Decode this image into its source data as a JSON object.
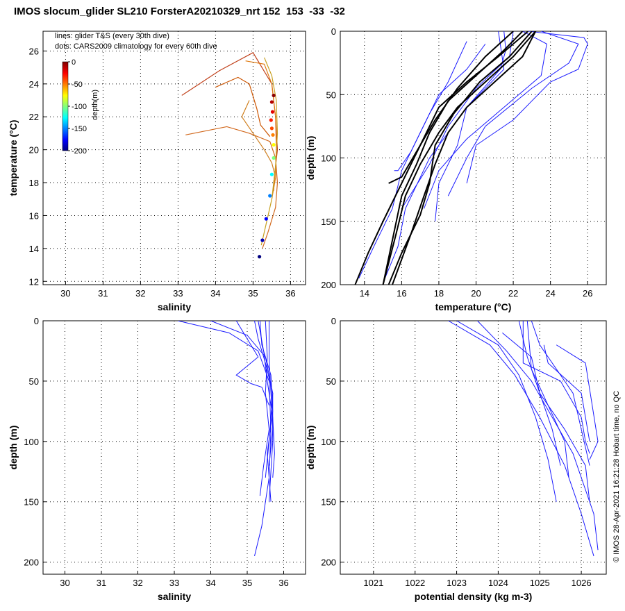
{
  "title": "IMOS slocum_glider SL210 ForsterA20210329_nrt 152  153  -33  -32",
  "stamp": "© IMOS 28-Apr-2021 16:21:28 Hobart time, no QC",
  "colors": {
    "glider_line": "#1a1aff",
    "mean_line": "#000000",
    "cmap_deep": "#00007f",
    "cmap_shallow": "#7f0000"
  },
  "chart_data": [
    {
      "id": "ts",
      "type": "scatter",
      "xlabel": "salinity",
      "ylabel": "temperature (°C)",
      "xlim": [
        29.4,
        36.4
      ],
      "ylim": [
        11.8,
        27.2
      ],
      "xticks": [
        30,
        31,
        32,
        33,
        34,
        35,
        36
      ],
      "yticks": [
        12,
        14,
        16,
        18,
        20,
        22,
        24,
        26
      ],
      "legend": [
        "lines: glider T&S (every 30th dive)",
        "dots: CARS2009 climatology for every 60th dive"
      ],
      "colorbar": {
        "label": "depth(m)",
        "ticks": [
          0,
          -50,
          -100,
          -150,
          -200
        ],
        "range": [
          -200,
          0
        ]
      },
      "series": [
        {
          "name": "glider T&S 1",
          "s": [
            33.1,
            34.1,
            35.0,
            35.5,
            35.6,
            35.65,
            35.55
          ],
          "t": [
            23.3,
            24.8,
            25.9,
            24.0,
            22.0,
            20.0,
            18.0
          ]
        },
        {
          "name": "glider T&S 2",
          "s": [
            33.2,
            34.3,
            34.9,
            35.45,
            35.6,
            35.65,
            35.6,
            35.4,
            35.25
          ],
          "t": [
            20.9,
            21.4,
            21.0,
            20.5,
            19.5,
            18.0,
            16.5,
            15.0,
            14.0
          ]
        },
        {
          "name": "glider T&S 3",
          "s": [
            34.0,
            34.6,
            34.9,
            35.1,
            35.2,
            35.45
          ],
          "t": [
            23.8,
            24.4,
            24.0,
            22.5,
            21.5,
            20.8
          ]
        },
        {
          "name": "glider T&S 4",
          "s": [
            34.8,
            35.3,
            35.5,
            35.6,
            35.62,
            35.6,
            35.5
          ],
          "t": [
            25.4,
            25.2,
            24.0,
            22.0,
            20.0,
            18.3,
            17.0
          ]
        },
        {
          "name": "glider T&S 5",
          "s": [
            34.9,
            34.7,
            35.0,
            35.3,
            35.5,
            35.58,
            35.55
          ],
          "t": [
            23.0,
            22.0,
            21.0,
            20.0,
            19.2,
            18.5,
            17.5
          ]
        },
        {
          "name": "glider T&S 6",
          "s": [
            35.3,
            35.5,
            35.62,
            35.65,
            35.6,
            35.5,
            35.35,
            35.22
          ],
          "t": [
            25.6,
            24.5,
            23.0,
            21.0,
            19.0,
            17.0,
            15.5,
            14.2
          ]
        }
      ],
      "climatology": [
        {
          "s": 35.55,
          "t": 23.3,
          "d": -2
        },
        {
          "s": 35.5,
          "t": 22.9,
          "d": -10
        },
        {
          "s": 35.52,
          "t": 22.3,
          "d": -20
        },
        {
          "s": 35.48,
          "t": 21.8,
          "d": -30
        },
        {
          "s": 35.5,
          "t": 21.3,
          "d": -40
        },
        {
          "s": 35.53,
          "t": 20.9,
          "d": -50
        },
        {
          "s": 35.55,
          "t": 20.3,
          "d": -75
        },
        {
          "s": 35.55,
          "t": 19.5,
          "d": -100
        },
        {
          "s": 35.5,
          "t": 18.5,
          "d": -125
        },
        {
          "s": 35.45,
          "t": 17.2,
          "d": -150
        },
        {
          "s": 35.35,
          "t": 15.8,
          "d": -175
        },
        {
          "s": 35.25,
          "t": 14.5,
          "d": -190
        },
        {
          "s": 35.17,
          "t": 13.5,
          "d": -200
        }
      ]
    },
    {
      "id": "temp_depth",
      "type": "line",
      "xlabel": "temperature (°C)",
      "ylabel": "depth (m)",
      "xlim": [
        12.7,
        27.0
      ],
      "ylim": [
        0,
        200
      ],
      "y_reversed": true,
      "xticks": [
        14,
        16,
        18,
        20,
        22,
        24,
        26
      ],
      "yticks": [
        0,
        50,
        100,
        150,
        200
      ],
      "series": [
        {
          "name": "glider temperature 1",
          "x": [
            21.5,
            21.6,
            21.3,
            19.5,
            17.5,
            16.2,
            15.8,
            15.1
          ],
          "depth": [
            0,
            15,
            30,
            60,
            100,
            140,
            170,
            195
          ]
        },
        {
          "name": "glider temperature 2",
          "x": [
            22.0,
            21.8,
            20.0,
            18.5,
            17.5,
            16.0
          ],
          "depth": [
            0,
            20,
            45,
            75,
            105,
            140
          ]
        },
        {
          "name": "glider temperature 3",
          "x": [
            22.8,
            25.8,
            26.0,
            25.5,
            24.0,
            22.0,
            20.0,
            19.5
          ],
          "depth": [
            0,
            5,
            10,
            30,
            40,
            70,
            90,
            120
          ]
        },
        {
          "name": "glider temperature 4",
          "x": [
            21.2,
            21.5,
            19.5,
            19.0,
            18.0,
            17.8
          ],
          "depth": [
            0,
            30,
            60,
            90,
            120,
            150
          ]
        },
        {
          "name": "glider temperature 5",
          "x": [
            20.5,
            19.5,
            18.0,
            17.0,
            16.0,
            15.5,
            14.5,
            13.7
          ],
          "depth": [
            10,
            30,
            50,
            80,
            110,
            140,
            170,
            195
          ]
        },
        {
          "name": "glider temperature 6",
          "x": [
            23.5,
            25.5,
            25.0,
            23.0,
            20.5,
            19.5,
            18.5
          ],
          "depth": [
            0,
            10,
            25,
            45,
            75,
            100,
            130
          ]
        },
        {
          "name": "glider temperature 7",
          "x": [
            19.5,
            18.5,
            17.5,
            16.5,
            15.8,
            15.6
          ],
          "depth": [
            8,
            40,
            65,
            95,
            110,
            110
          ]
        },
        {
          "name": "glider temperature 8",
          "x": [
            22.5,
            23.8,
            23.5,
            21.5,
            19.5,
            18.0,
            17.2
          ],
          "depth": [
            0,
            10,
            35,
            60,
            85,
            110,
            140
          ]
        }
      ],
      "mean_series": [
        {
          "name": "mean temperature 1",
          "x": [
            23.2,
            22.0,
            20.5,
            19.0,
            18.0,
            17.0,
            16.2,
            15.7,
            15.0
          ],
          "depth": [
            0,
            20,
            40,
            60,
            80,
            105,
            130,
            160,
            200
          ]
        },
        {
          "name": "mean temperature 2",
          "x": [
            22.5,
            21.5,
            20.0,
            18.5,
            17.5,
            16.8,
            16.0,
            15.5,
            15.0
          ],
          "depth": [
            0,
            15,
            35,
            55,
            80,
            105,
            130,
            165,
            200
          ]
        },
        {
          "name": "mean temperature 3",
          "x": [
            23.0,
            21.8,
            20.2,
            18.8,
            17.8,
            17.5,
            17.0,
            16.0,
            15.3
          ],
          "depth": [
            0,
            20,
            40,
            65,
            90,
            120,
            145,
            175,
            200
          ]
        },
        {
          "name": "mean temperature 4",
          "x": [
            22.8,
            21.2,
            19.5,
            18.0,
            17.0,
            16.0,
            15.0,
            14.2,
            13.5
          ],
          "depth": [
            0,
            20,
            40,
            60,
            90,
            120,
            150,
            175,
            200
          ]
        },
        {
          "name": "mean temperature 5",
          "x": [
            22.0,
            20.5,
            19.0,
            17.8,
            16.8,
            16.0,
            15.3
          ],
          "depth": [
            0,
            20,
            45,
            70,
            95,
            115,
            120
          ]
        },
        {
          "name": "mean temperature 6",
          "x": [
            23.2,
            22.5,
            21.0,
            19.5,
            18.5,
            17.8,
            17.2,
            16.5,
            15.5
          ],
          "depth": [
            0,
            20,
            40,
            60,
            80,
            105,
            130,
            160,
            200
          ]
        }
      ]
    },
    {
      "id": "sal_depth",
      "type": "line",
      "xlabel": "salinity",
      "ylabel": "depth (m)",
      "xlim": [
        29.4,
        36.6
      ],
      "ylim": [
        0,
        210
      ],
      "y_reversed": true,
      "xticks": [
        30,
        31,
        32,
        33,
        34,
        35,
        36
      ],
      "yticks": [
        0,
        50,
        100,
        150,
        200
      ],
      "series": [
        {
          "name": "glider salinity 1",
          "x": [
            33.1,
            34.5,
            35.3,
            35.6,
            35.65,
            35.6,
            35.4,
            35.2
          ],
          "depth": [
            0,
            10,
            25,
            50,
            90,
            130,
            170,
            195
          ]
        },
        {
          "name": "glider salinity 2",
          "x": [
            34.0,
            35.0,
            35.5,
            35.7,
            35.6,
            35.5
          ],
          "depth": [
            0,
            12,
            30,
            60,
            100,
            130
          ]
        },
        {
          "name": "glider salinity 3",
          "x": [
            34.7,
            35.3,
            34.9,
            34.7,
            35.1,
            35.4,
            35.6
          ],
          "depth": [
            0,
            30,
            40,
            45,
            52,
            55,
            70
          ]
        },
        {
          "name": "glider salinity 4",
          "x": [
            35.2,
            35.3,
            35.5,
            35.7,
            35.7,
            35.6
          ],
          "depth": [
            0,
            15,
            35,
            60,
            100,
            150
          ]
        },
        {
          "name": "glider salinity 5",
          "x": [
            35.35,
            35.4,
            35.65,
            35.7,
            35.55,
            35.65
          ],
          "depth": [
            0,
            20,
            45,
            75,
            110,
            150
          ]
        },
        {
          "name": "glider salinity 6",
          "x": [
            35.3,
            35.45,
            35.55,
            35.7,
            35.75,
            35.7
          ],
          "depth": [
            0,
            25,
            50,
            80,
            110,
            130
          ]
        },
        {
          "name": "glider salinity 7",
          "x": [
            35.5,
            35.55,
            35.5,
            35.6,
            35.45,
            35.35
          ],
          "depth": [
            0,
            30,
            60,
            90,
            120,
            145
          ]
        },
        {
          "name": "glider salinity 8",
          "x": [
            35.6,
            35.6,
            35.65,
            35.7,
            35.6
          ],
          "depth": [
            0,
            30,
            60,
            90,
            120
          ]
        }
      ]
    },
    {
      "id": "dens_depth",
      "type": "line",
      "xlabel": "potential density (kg m-3)",
      "ylabel": "depth (m)",
      "xlim": [
        1020.2,
        1026.6
      ],
      "ylim": [
        0,
        210
      ],
      "y_reversed": true,
      "xticks": [
        1021,
        1022,
        1023,
        1024,
        1025,
        1026
      ],
      "yticks": [
        0,
        50,
        100,
        150,
        200
      ],
      "series": [
        {
          "name": "glider density 1",
          "x": [
            1022.8,
            1023.8,
            1024.4,
            1025.0,
            1025.6,
            1026.0,
            1026.3
          ],
          "depth": [
            0,
            20,
            45,
            80,
            120,
            160,
            195
          ]
        },
        {
          "name": "glider density 2",
          "x": [
            1023.5,
            1024.2,
            1024.8,
            1025.3,
            1025.8,
            1026.3,
            1026.4
          ],
          "depth": [
            0,
            25,
            50,
            80,
            110,
            160,
            190
          ]
        },
        {
          "name": "glider density 3",
          "x": [
            1024.1,
            1024.8,
            1025.0,
            1025.6,
            1026.1,
            1026.2
          ],
          "depth": [
            10,
            30,
            60,
            90,
            120,
            150
          ]
        },
        {
          "name": "glider density 4",
          "x": [
            1024.6,
            1024.6,
            1025.5,
            1026.0,
            1026.1,
            1026.2
          ],
          "depth": [
            0,
            35,
            50,
            80,
            100,
            110
          ]
        },
        {
          "name": "glider density 5",
          "x": [
            1024.8,
            1025.0,
            1025.8,
            1026.0,
            1026.2
          ],
          "depth": [
            0,
            20,
            60,
            90,
            120
          ]
        },
        {
          "name": "glider density 6",
          "x": [
            1023.0,
            1024.0,
            1024.5,
            1024.9,
            1025.2,
            1025.4
          ],
          "depth": [
            0,
            20,
            45,
            80,
            115,
            150
          ]
        },
        {
          "name": "glider density 7",
          "x": [
            1024.5,
            1024.7,
            1025.0,
            1025.3,
            1025.5
          ],
          "depth": [
            0,
            30,
            60,
            90,
            120
          ]
        },
        {
          "name": "glider density 8",
          "x": [
            1024.7,
            1024.8,
            1025.2,
            1025.6,
            1025.7
          ],
          "depth": [
            0,
            40,
            70,
            100,
            130
          ]
        },
        {
          "name": "glider density 9",
          "x": [
            1025.1,
            1025.2,
            1026.0,
            1026.2
          ],
          "depth": [
            20,
            35,
            60,
            100
          ]
        },
        {
          "name": "glider density 10",
          "x": [
            1025.4,
            1026.1,
            1026.4,
            1026.2
          ],
          "depth": [
            20,
            35,
            100,
            115
          ]
        }
      ]
    }
  ]
}
